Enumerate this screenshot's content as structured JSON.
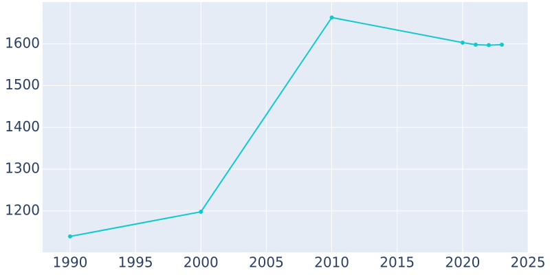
{
  "chart_data": {
    "type": "line",
    "x": [
      1990,
      2000,
      2010,
      2020,
      2021,
      2022,
      2023
    ],
    "series": [
      {
        "color": "#12c8cf",
        "values": [
          1139,
          1198,
          1663,
          1603,
          1598,
          1597,
          1598
        ]
      }
    ],
    "xlim": [
      1987.9,
      2025
    ],
    "ylim": [
      1101,
      1700
    ],
    "xticks": [
      1990,
      1995,
      2000,
      2005,
      2010,
      2015,
      2020,
      2025
    ],
    "yticks": [
      1200,
      1300,
      1400,
      1500,
      1600
    ],
    "grid": true
  }
}
